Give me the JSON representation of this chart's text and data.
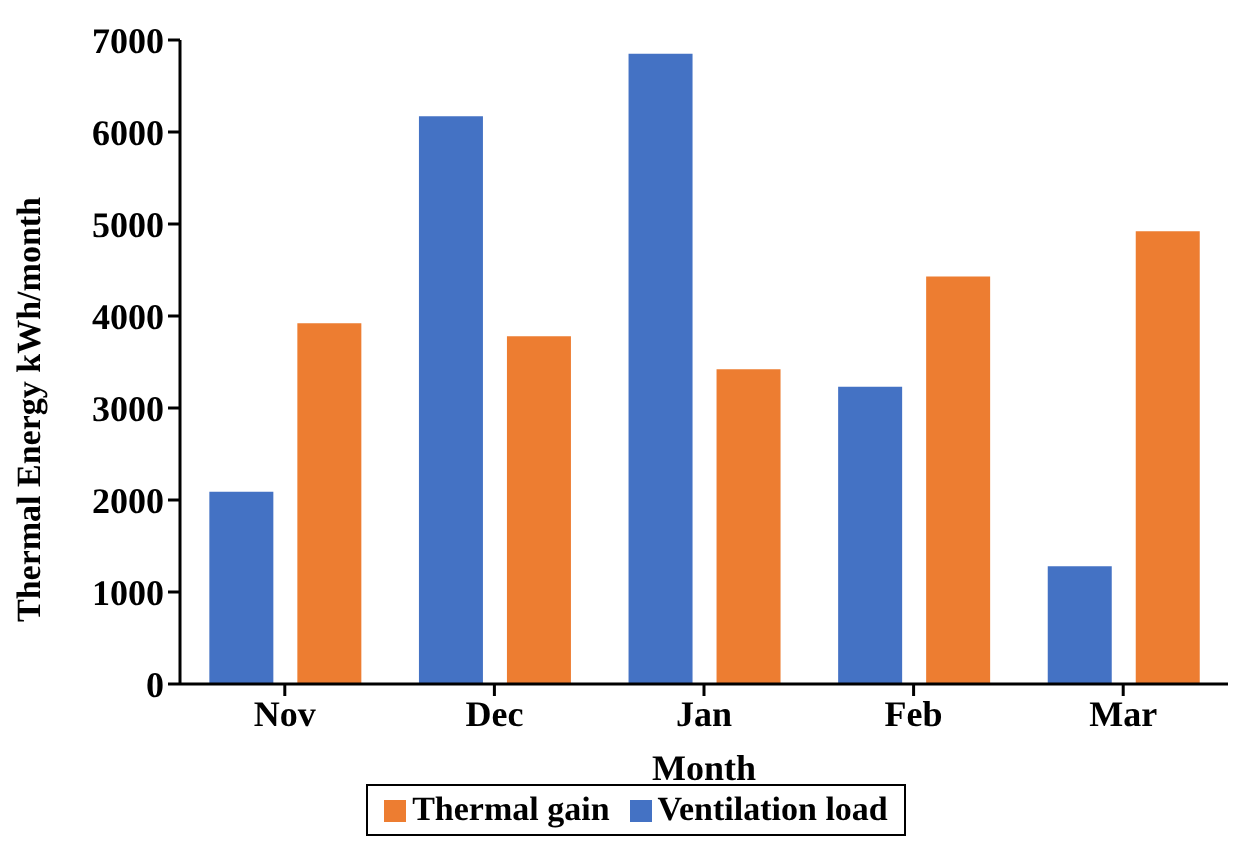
{
  "chart_data": {
    "type": "bar",
    "xlabel": "Month",
    "ylabel": "Thermal  Energy kWh/month",
    "categories": [
      "Nov",
      "Dec",
      "Jan",
      "Feb",
      "Mar"
    ],
    "series": [
      {
        "name": "Ventilation load",
        "color": "#4472c4",
        "values": [
          2090,
          6170,
          6850,
          3230,
          1280
        ]
      },
      {
        "name": "Thermal gain",
        "color": "#ed7d31",
        "values": [
          3920,
          3780,
          3420,
          4430,
          4920
        ]
      }
    ],
    "ylim": [
      0,
      7000
    ],
    "yticks": [
      0,
      1000,
      2000,
      3000,
      4000,
      5000,
      6000,
      7000
    ],
    "grid": false,
    "legend": "bottom"
  }
}
